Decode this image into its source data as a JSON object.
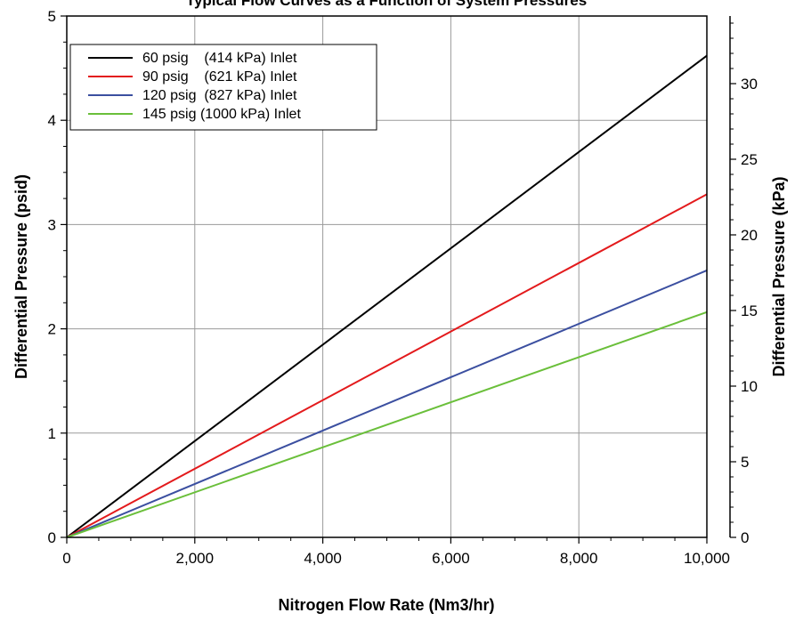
{
  "chart_data": {
    "type": "line",
    "title": "Typical Flow Curves as a Function of System Pressures",
    "xlabel": "Nitrogen Flow Rate (Nm3/hr)",
    "ylabel": "Differential Pressure (psid)",
    "y2label": "Differential Pressure (kPa)",
    "xlim": [
      0,
      10000
    ],
    "ylim": [
      0,
      5
    ],
    "y2lim": [
      0,
      34.47
    ],
    "grid": true,
    "legend_position": "top-left",
    "x_ticks": [
      "0",
      "2,000",
      "4,000",
      "6,000",
      "8,000",
      "10,000"
    ],
    "y_ticks": [
      "0",
      "1",
      "2",
      "3",
      "4",
      "5"
    ],
    "y2_ticks": [
      "0",
      "5",
      "10",
      "15",
      "20",
      "25",
      "30"
    ],
    "series": [
      {
        "name": "60 psig    (414 kPa) Inlet",
        "color": "#000000",
        "x": [
          0,
          10000
        ],
        "y": [
          0,
          4.62
        ]
      },
      {
        "name": "90 psig    (621 kPa) Inlet",
        "color": "#e31a1c",
        "x": [
          0,
          10000
        ],
        "y": [
          0,
          3.29
        ]
      },
      {
        "name": "120 psig  (827 kPa) Inlet",
        "color": "#3b4fa0",
        "x": [
          0,
          10000
        ],
        "y": [
          0,
          2.56
        ]
      },
      {
        "name": "145 psig (1000 kPa) Inlet",
        "color": "#6abf3a",
        "x": [
          0,
          10000
        ],
        "y": [
          0,
          2.16
        ]
      }
    ]
  }
}
